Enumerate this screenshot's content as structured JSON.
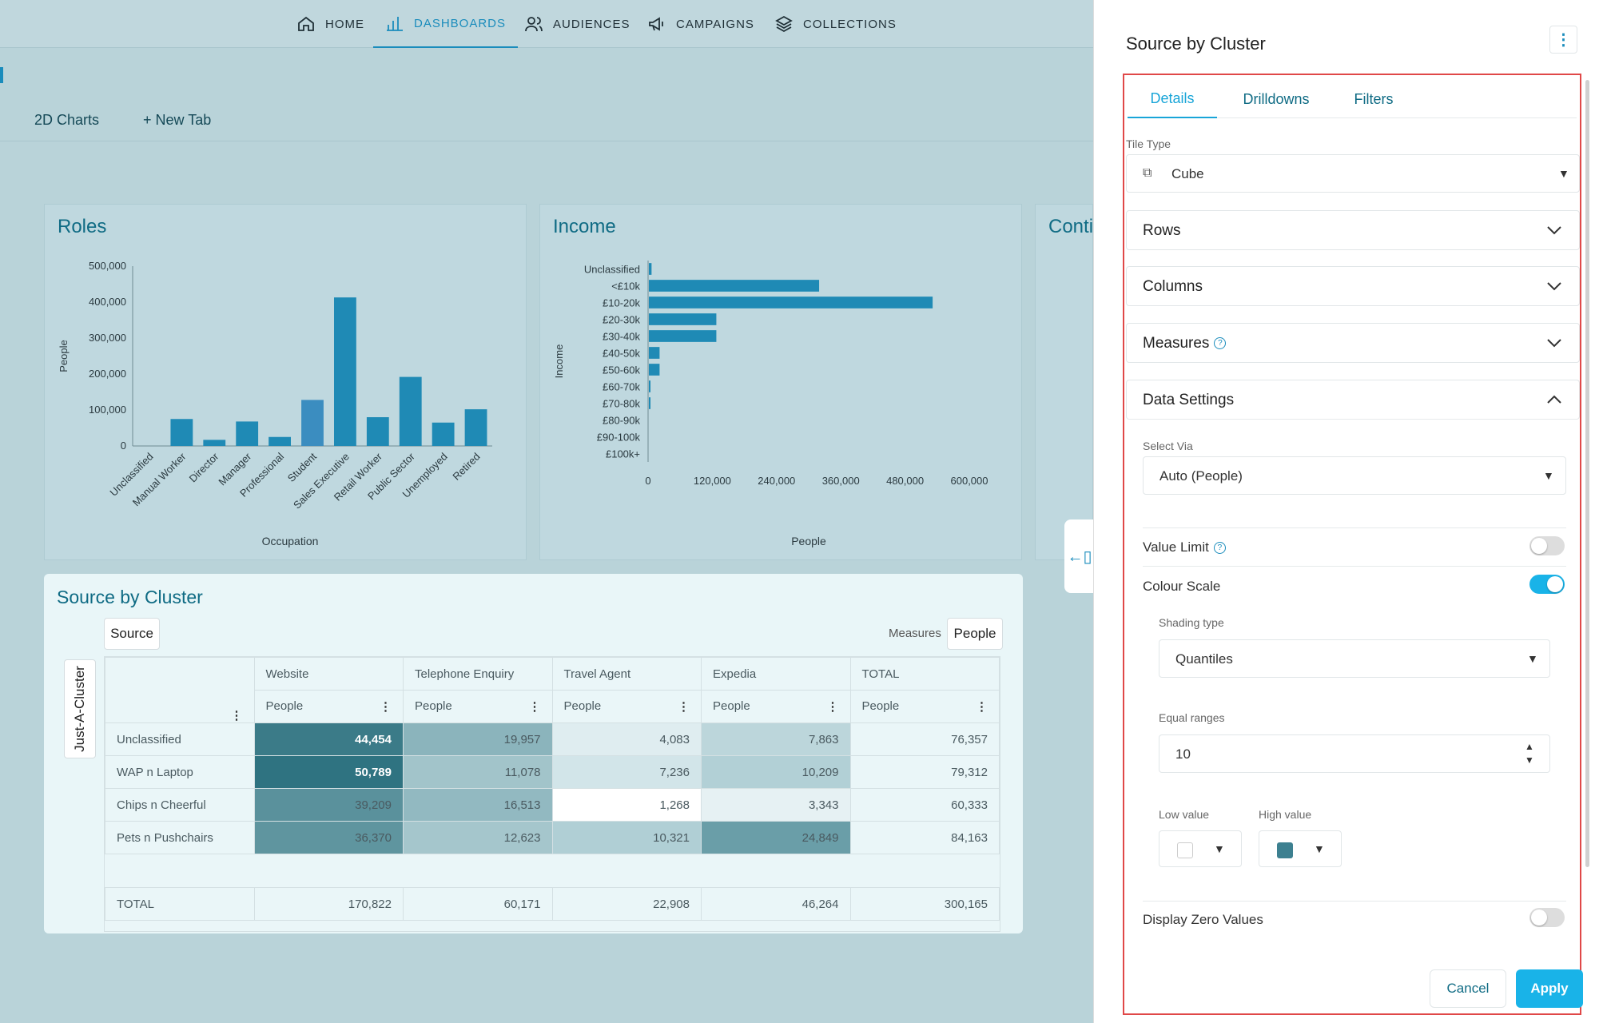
{
  "nav": {
    "items": [
      {
        "label": "HOME",
        "icon": "home-icon"
      },
      {
        "label": "DASHBOARDS",
        "icon": "bar-chart-icon"
      },
      {
        "label": "AUDIENCES",
        "icon": "people-icon"
      },
      {
        "label": "CAMPAIGNS",
        "icon": "megaphone-icon"
      },
      {
        "label": "COLLECTIONS",
        "icon": "layers-icon"
      }
    ]
  },
  "tabs": {
    "charts2d": "2D Charts",
    "new_tab": "+ New Tab"
  },
  "colors": {
    "accent": "#1a8cbc",
    "bar": "#1f8ab5",
    "toggle_on": "#19b3e8"
  },
  "roles_chart": {
    "title": "Roles",
    "chart_data": {
      "type": "bar",
      "categories": [
        "Unclassified",
        "Manual Worker",
        "Director",
        "Manager",
        "Professional",
        "Student",
        "Sales Executive",
        "Retail Worker",
        "Public Sector",
        "Unemployed",
        "Retired"
      ],
      "values": [
        0,
        75000,
        17000,
        68000,
        25000,
        128000,
        413000,
        80000,
        192000,
        65000,
        102000
      ],
      "xlabel": "Occupation",
      "ylabel": "People",
      "ylim": [
        0,
        500000
      ],
      "yticks": [
        "500,000",
        "400,000",
        "300,000",
        "200,000",
        "100,000",
        "0"
      ]
    }
  },
  "income_chart": {
    "title": "Income",
    "chart_data": {
      "type": "bar",
      "orientation": "horizontal",
      "categories": [
        "Unclassified",
        "<£10k",
        "£10-20k",
        "£20-30k",
        "£30-40k",
        "£40-50k",
        "£50-60k",
        "£60-70k",
        "£70-80k",
        "£80-90k",
        "£90-100k",
        "£100k+"
      ],
      "values": [
        5000,
        318000,
        530000,
        126000,
        126000,
        20000,
        20000,
        3000,
        3000,
        0,
        0,
        0
      ],
      "xlabel": "People",
      "ylabel": "Income",
      "xlim": [
        0,
        600000
      ],
      "xticks": [
        "0",
        "120,000",
        "240,000",
        "360,000",
        "480,000",
        "600,000"
      ]
    }
  },
  "third_card_title": "Contir",
  "pivot": {
    "title": "Source by Cluster",
    "source_pill": "Source",
    "measures_label": "Measures",
    "measures_pill": "People",
    "cluster_pill": "Just-A-Cluster",
    "columns": [
      "Website",
      "Telephone Enquiry",
      "Travel Agent",
      "Expedia",
      "TOTAL"
    ],
    "measure": "People",
    "rows": [
      {
        "label": "Unclassified",
        "values": [
          "44,454",
          "19,957",
          "4,083",
          "7,863",
          "76,357"
        ]
      },
      {
        "label": "WAP n Laptop",
        "values": [
          "50,789",
          "11,078",
          "7,236",
          "10,209",
          "79,312"
        ]
      },
      {
        "label": "Chips n Cheerful",
        "values": [
          "39,209",
          "16,513",
          "1,268",
          "3,343",
          "60,333"
        ]
      },
      {
        "label": "Pets n Pushchairs",
        "values": [
          "36,370",
          "12,623",
          "10,321",
          "24,849",
          "84,163"
        ]
      }
    ],
    "total": {
      "label": "TOTAL",
      "values": [
        "170,822",
        "60,171",
        "22,908",
        "46,264",
        "300,165"
      ]
    }
  },
  "panel": {
    "title": "Source by Cluster",
    "tabs": [
      "Details",
      "Drilldowns",
      "Filters"
    ],
    "tile_type_label": "Tile Type",
    "tile_type_value": "Cube",
    "rows": "Rows",
    "columns": "Columns",
    "measures": "Measures",
    "data_settings": "Data Settings",
    "select_via_label": "Select Via",
    "select_via_value": "Auto (People)",
    "value_limit": "Value Limit",
    "colour_scale": "Colour Scale",
    "shading_type_label": "Shading type",
    "shading_type_value": "Quantiles",
    "equal_ranges_label": "Equal ranges",
    "equal_ranges_value": "10",
    "low_value_label": "Low value",
    "high_value_label": "High value",
    "low_color": "#ffffff",
    "high_color": "#3d8090",
    "display_zero": "Display Zero Values",
    "value_limit_on": false,
    "colour_scale_on": true,
    "display_zero_on": false,
    "cancel": "Cancel",
    "apply": "Apply"
  }
}
